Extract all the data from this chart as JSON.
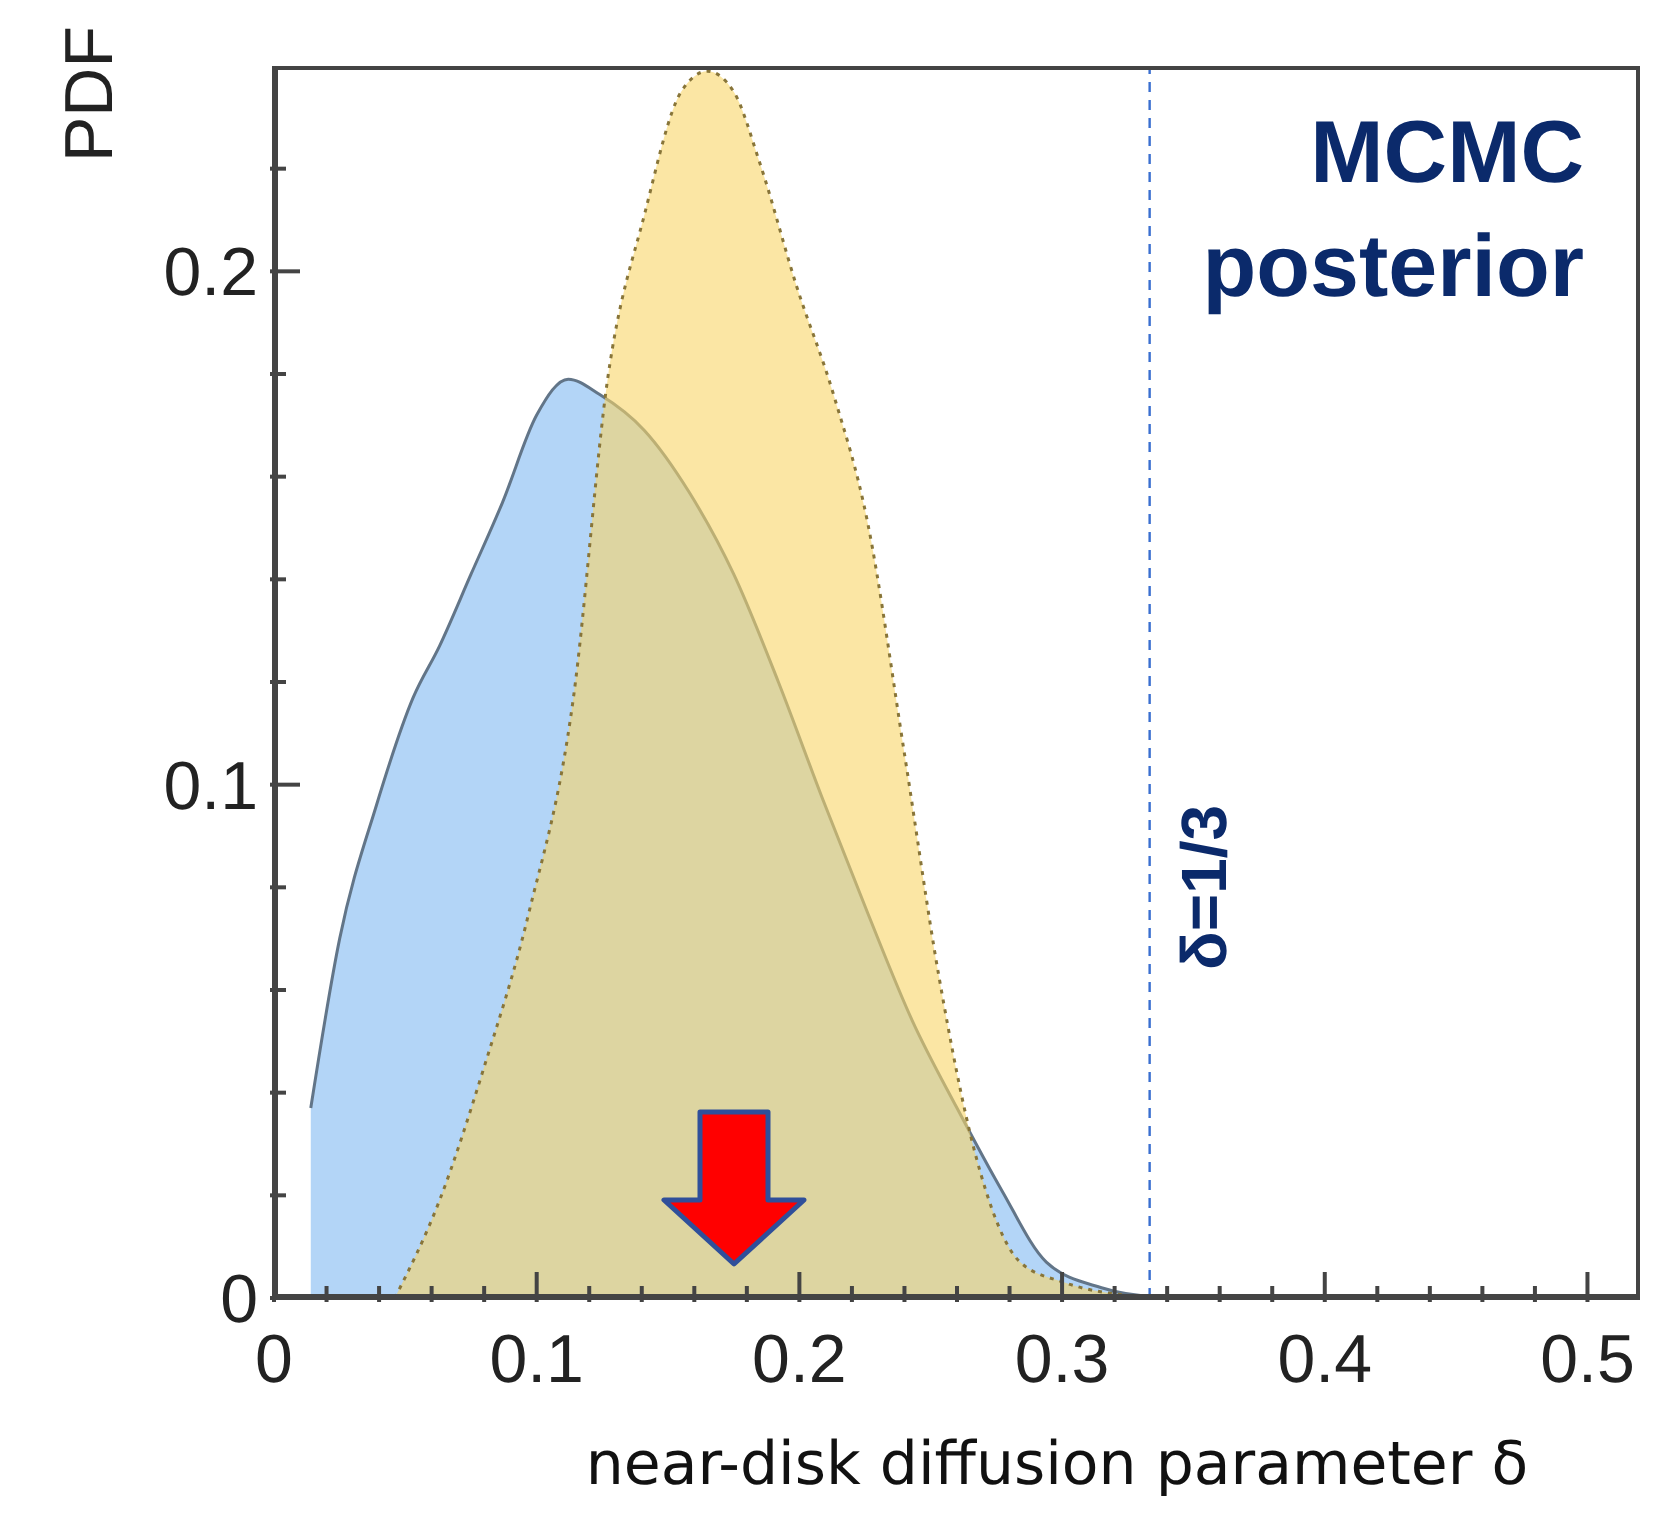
{
  "chart_data": {
    "type": "area",
    "xlabel": "near-disk diffusion parameter δ",
    "ylabel": "PDF",
    "xlim": [
      0,
      0.52
    ],
    "ylim": [
      0,
      0.24
    ],
    "xticks": [
      0,
      {
        "value": 0.02,
        "label": null
      },
      {
        "value": 0.04,
        "label": null
      },
      {
        "value": 0.06,
        "label": null
      },
      {
        "value": 0.08,
        "label": null
      },
      0.1,
      {
        "value": 0.12,
        "label": null
      },
      {
        "value": 0.14,
        "label": null
      },
      {
        "value": 0.16,
        "label": null
      },
      {
        "value": 0.18,
        "label": null
      },
      0.2,
      {
        "value": 0.22,
        "label": null
      },
      {
        "value": 0.24,
        "label": null
      },
      {
        "value": 0.26,
        "label": null
      },
      {
        "value": 0.28,
        "label": null
      },
      0.3,
      {
        "value": 0.32,
        "label": null
      },
      {
        "value": 0.34,
        "label": null
      },
      {
        "value": 0.36,
        "label": null
      },
      {
        "value": 0.38,
        "label": null
      },
      0.4,
      {
        "value": 0.42,
        "label": null
      },
      {
        "value": 0.44,
        "label": null
      },
      {
        "value": 0.46,
        "label": null
      },
      {
        "value": 0.48,
        "label": null
      },
      0.5
    ],
    "yticks": [
      0,
      {
        "value": 0.02,
        "label": null
      },
      {
        "value": 0.04,
        "label": null
      },
      {
        "value": 0.06,
        "label": null
      },
      {
        "value": 0.08,
        "label": null
      },
      0.1,
      {
        "value": 0.12,
        "label": null
      },
      {
        "value": 0.14,
        "label": null
      },
      {
        "value": 0.16,
        "label": null
      },
      {
        "value": 0.18,
        "label": null
      },
      0.2,
      {
        "value": 0.22,
        "label": null
      }
    ],
    "series": [
      {
        "color": "#b3d5f7",
        "line_style": "solid",
        "x": [
          0.014,
          0.025,
          0.039,
          0.053,
          0.063,
          0.075,
          0.087,
          0.1,
          0.112,
          0.124,
          0.141,
          0.158,
          0.175,
          0.192,
          0.209,
          0.226,
          0.243,
          0.26,
          0.277,
          0.294,
          0.315,
          0.335,
          0.37
        ],
        "values": [
          0.037,
          0.07,
          0.096,
          0.117,
          0.127,
          0.141,
          0.155,
          0.172,
          0.179,
          0.176,
          0.169,
          0.157,
          0.141,
          0.12,
          0.097,
          0.075,
          0.054,
          0.037,
          0.021,
          0.007,
          0.002,
          0.0003,
          0
        ]
      },
      {
        "color": "#f8d568",
        "line_style": "dotted",
        "x": [
          0.046,
          0.063,
          0.08,
          0.097,
          0.114,
          0.127,
          0.141,
          0.155,
          0.165,
          0.175,
          0.185,
          0.199,
          0.213,
          0.226,
          0.24,
          0.253,
          0.267,
          0.284,
          0.301,
          0.328
        ],
        "values": [
          0,
          0.019,
          0.045,
          0.075,
          0.117,
          0.179,
          0.211,
          0.235,
          0.239,
          0.235,
          0.221,
          0.197,
          0.176,
          0.151,
          0.106,
          0.063,
          0.028,
          0.007,
          0.003,
          0.0003
        ]
      }
    ],
    "ref_lines": [
      {
        "axis": "x",
        "value": 0.333333,
        "color": "#3a6fd0",
        "line_style": "dashed"
      }
    ],
    "annotations": [
      "MCMC posterior",
      {
        "text": "δ=1/3",
        "x": 0.333333,
        "y": 0.08
      }
    ]
  }
}
